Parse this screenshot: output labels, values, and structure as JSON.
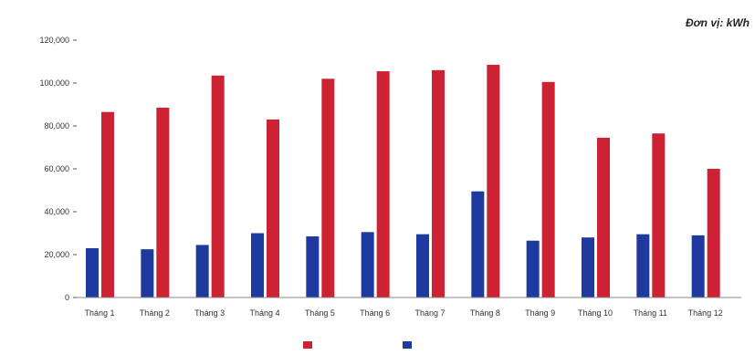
{
  "chart_data": {
    "type": "bar",
    "unit_label": "Đơn vị: kWh",
    "categories": [
      "Tháng 1",
      "Tháng 2",
      "Tháng 3",
      "Tháng 4",
      "Tháng 5",
      "Tháng 6",
      "Tháng 7",
      "Tháng 8",
      "Tháng 9",
      "Tháng 10",
      "Tháng 11",
      "Tháng 12"
    ],
    "y_ticks": [
      "0",
      "20,000",
      "40,000",
      "60,000",
      "80,000",
      "100,000",
      "120,000"
    ],
    "ylim": [
      0,
      120000
    ],
    "grid": false,
    "legend_position": "bottom",
    "series": [
      {
        "name": "",
        "color": "#cc2233",
        "values": [
          86500,
          88500,
          103500,
          83000,
          102000,
          105500,
          106000,
          108500,
          100500,
          74500,
          76500,
          60000
        ]
      },
      {
        "name": "",
        "color": "#1f3a9e",
        "values": [
          23000,
          22500,
          24500,
          30000,
          28500,
          30500,
          29500,
          49500,
          26500,
          28000,
          29500,
          29000
        ]
      }
    ]
  }
}
